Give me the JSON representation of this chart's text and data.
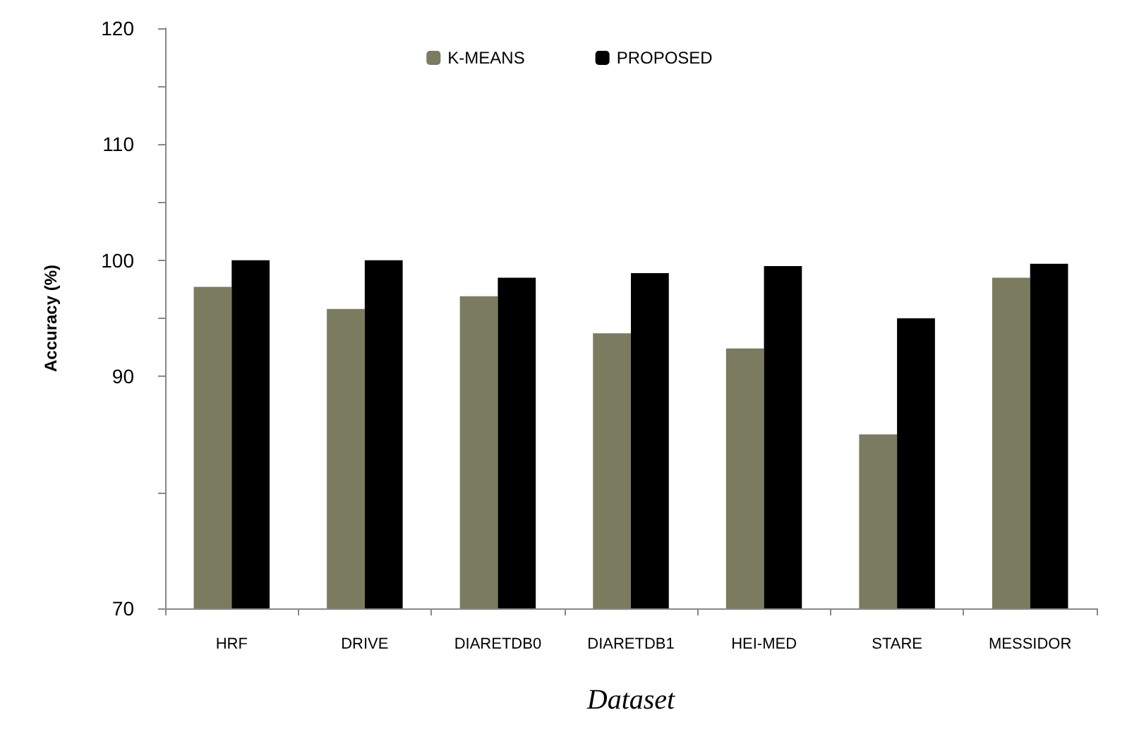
{
  "chart_data": {
    "type": "bar",
    "xlabel": "Dataset",
    "ylabel": "Accuracy (%)",
    "categories": [
      "HRF",
      "DRIVE",
      "DIARETDB0",
      "DIARETDB1",
      "HEI-MED",
      "STARE",
      "MESSIDOR"
    ],
    "series": [
      {
        "name": "K-MEANS",
        "color": "#7b7b5f",
        "values": [
          97.7,
          95.8,
          96.9,
          93.7,
          92.4,
          85.0,
          98.5
        ]
      },
      {
        "name": "PROPOSED",
        "color": "#000000",
        "values": [
          100,
          100,
          98.5,
          98.9,
          99.5,
          95.0,
          99.7
        ]
      }
    ],
    "ylim": [
      70,
      120
    ],
    "yticks": [
      70,
      {
        "value": 80,
        "label": null
      },
      90,
      {
        "value": 95,
        "label": null
      },
      100,
      {
        "value": 105,
        "label": null
      },
      110,
      {
        "value": 115,
        "label": null
      },
      120
    ],
    "grid": false,
    "legend": "top"
  }
}
